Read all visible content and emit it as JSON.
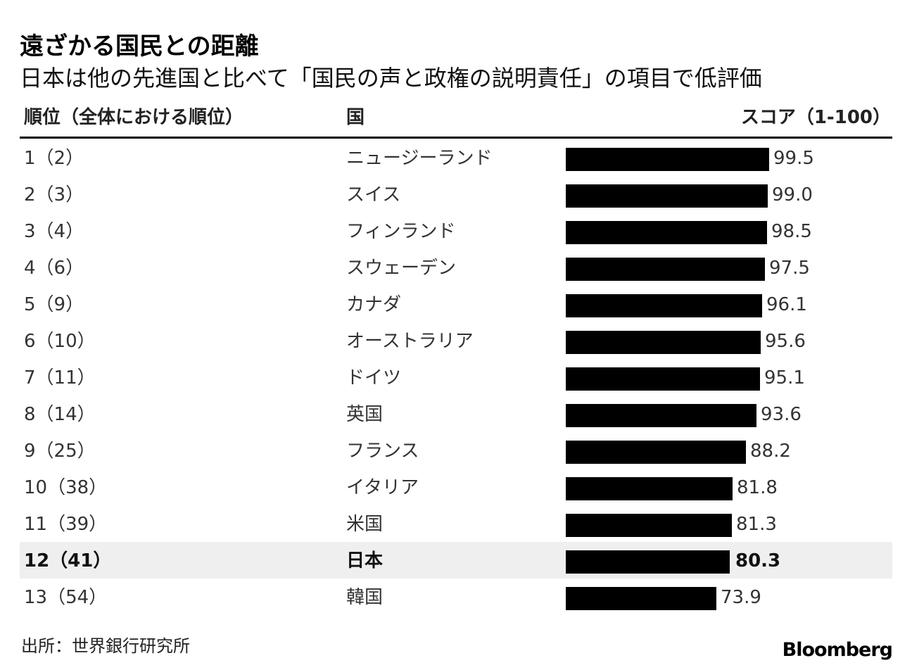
{
  "header": {
    "title": "遠ざかる国民との距離",
    "subtitle": "日本は他の先進国と比べて「国民の声と政権の説明責任」の項目で低評価"
  },
  "table": {
    "col_rank": "順位（全体における順位）",
    "col_country": "国",
    "col_score": "スコア（1-100）"
  },
  "chart_data": {
    "type": "bar",
    "orientation": "horizontal",
    "title": "遠ざかる国民との距離",
    "subtitle": "日本は他の先進国と比べて「国民の声と政権の説明責任」の項目で低評価",
    "ylabel": "国",
    "xlabel": "スコア（1-100）",
    "xlim": [
      0,
      100
    ],
    "grid": false,
    "highlight": "日本",
    "bar_color": "#000000",
    "highlight_row_color": "#efefef",
    "rows": [
      {
        "rank": "1（2）",
        "country": "ニュージーランド",
        "value": 99.5
      },
      {
        "rank": "2（3）",
        "country": "スイス",
        "value": 99.0
      },
      {
        "rank": "3（4）",
        "country": "フィンランド",
        "value": 98.5
      },
      {
        "rank": "4（6）",
        "country": "スウェーデン",
        "value": 97.5
      },
      {
        "rank": "5（9）",
        "country": "カナダ",
        "value": 96.1
      },
      {
        "rank": "6（10）",
        "country": "オーストラリア",
        "value": 95.6
      },
      {
        "rank": "7（11）",
        "country": "ドイツ",
        "value": 95.1
      },
      {
        "rank": "8（14）",
        "country": "英国",
        "value": 93.6
      },
      {
        "rank": "9（25）",
        "country": "フランス",
        "value": 88.2
      },
      {
        "rank": "10（38）",
        "country": "イタリア",
        "value": 81.8
      },
      {
        "rank": "11（39）",
        "country": "米国",
        "value": 81.3
      },
      {
        "rank": "12（41）",
        "country": "日本",
        "value": 80.3
      },
      {
        "rank": "13（54）",
        "country": "韓国",
        "value": 73.9
      }
    ]
  },
  "footer": {
    "source": "出所：世界銀行研究所",
    "brand": "Bloomberg"
  }
}
